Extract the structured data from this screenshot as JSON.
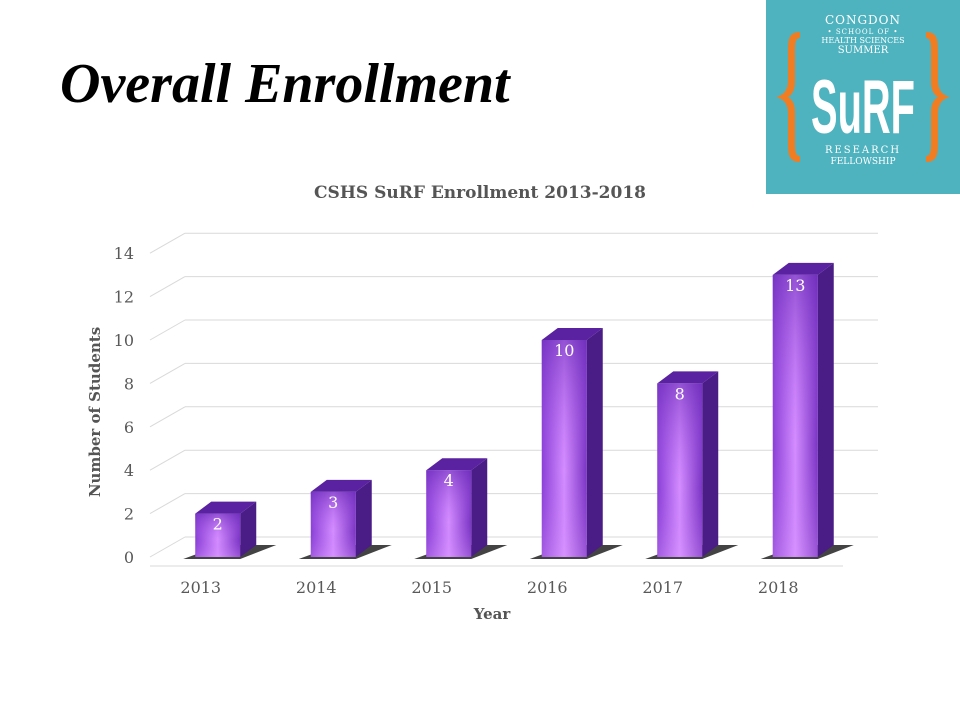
{
  "slide_title": "Overall Enrollment",
  "logo": {
    "line1": "CONGDON",
    "line2": "• SCHOOL OF •",
    "line3": "HEALTH SCIENCES",
    "line4": "SUMMER",
    "main": "SuRF",
    "line5": "RESEARCH",
    "line6": "FELLOWSHIP",
    "bg": "#4fb3bf",
    "brace_color": "#f07d22"
  },
  "chart_data": {
    "type": "bar",
    "title": "CSHS SuRF Enrollment 2013-2018",
    "xlabel": "Year",
    "ylabel": "Number of Students",
    "categories": [
      "2013",
      "2014",
      "2015",
      "2016",
      "2017",
      "2018"
    ],
    "values": [
      2,
      3,
      4,
      10,
      8,
      13
    ],
    "ylim": [
      0,
      14
    ],
    "yticks": [
      0,
      2,
      4,
      6,
      8,
      10,
      12,
      14
    ],
    "grid": true,
    "style": "3d-column",
    "bar_color": "#9b4fe0"
  }
}
